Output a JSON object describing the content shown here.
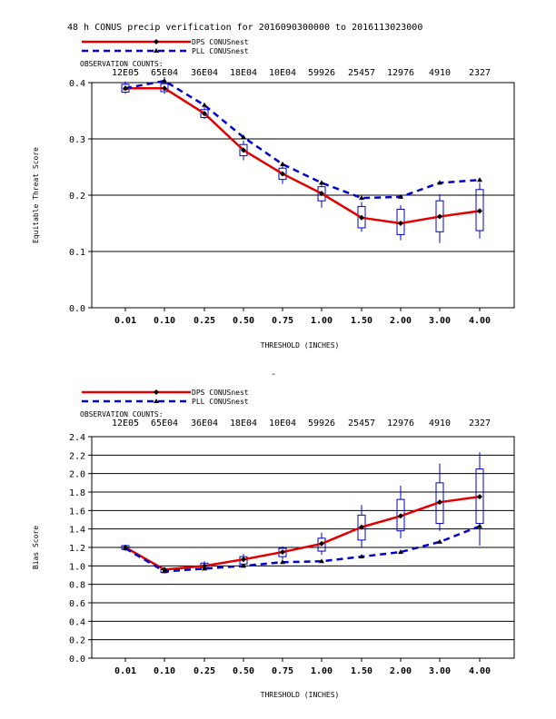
{
  "title": "48 h CONUS precip verification for 2016090300000 to 2016113023000",
  "legend": [
    {
      "name": "DPS CONUSnest",
      "color": "#e00000",
      "dash": false
    },
    {
      "name": "PLL CONUSnest",
      "color": "#0000cc",
      "dash": true
    }
  ],
  "obs_counts_label": "OBSERVATION COUNTS:",
  "obs_counts": [
    "12E05",
    "65E04",
    "36E04",
    "18E04",
    "10E04",
    "59926",
    "25457",
    "12976",
    "4910",
    "2327"
  ],
  "separator": "-",
  "chart_data": [
    {
      "type": "line",
      "title": "",
      "xlabel": "THRESHOLD (INCHES)",
      "ylabel": "Equitable Threat Score",
      "categories": [
        "0.01",
        "0.10",
        "0.25",
        "0.50",
        "0.75",
        "1.00",
        "1.50",
        "2.00",
        "3.00",
        "4.00"
      ],
      "ylim": [
        0,
        0.4
      ],
      "yticks": [
        "0.0",
        "0.1",
        "0.2",
        "0.3",
        "0.4"
      ],
      "series": [
        {
          "name": "DPS CONUSnest",
          "color": "#e00000",
          "values": [
            0.39,
            0.39,
            0.345,
            0.28,
            0.238,
            0.203,
            0.16,
            0.15,
            0.162,
            0.172
          ]
        },
        {
          "name": "PLL CONUSnest",
          "color": "#0000cc",
          "values": [
            0.39,
            0.403,
            0.36,
            0.303,
            0.255,
            0.222,
            0.195,
            0.197,
            0.222,
            0.227
          ]
        }
      ],
      "boxes": [
        {
          "q1": 0.383,
          "q3": 0.397,
          "min": 0.38,
          "max": 0.402
        },
        {
          "q1": 0.384,
          "q3": 0.398,
          "min": 0.38,
          "max": 0.41
        },
        {
          "q1": 0.338,
          "q3": 0.352,
          "min": 0.335,
          "max": 0.356
        },
        {
          "q1": 0.27,
          "q3": 0.29,
          "min": 0.262,
          "max": 0.297
        },
        {
          "q1": 0.228,
          "q3": 0.248,
          "min": 0.22,
          "max": 0.255
        },
        {
          "q1": 0.19,
          "q3": 0.215,
          "min": 0.178,
          "max": 0.222
        },
        {
          "q1": 0.142,
          "q3": 0.18,
          "min": 0.135,
          "max": 0.188
        },
        {
          "q1": 0.13,
          "q3": 0.175,
          "min": 0.12,
          "max": 0.182
        },
        {
          "q1": 0.135,
          "q3": 0.19,
          "min": 0.115,
          "max": 0.202
        },
        {
          "q1": 0.137,
          "q3": 0.21,
          "min": 0.123,
          "max": 0.222
        }
      ],
      "grid": true
    },
    {
      "type": "line",
      "title": "",
      "xlabel": "THRESHOLD (INCHES)",
      "ylabel": "Bias Score",
      "categories": [
        "0.01",
        "0.10",
        "0.25",
        "0.50",
        "0.75",
        "1.00",
        "1.50",
        "2.00",
        "3.00",
        "4.00"
      ],
      "ylim": [
        0,
        2.4
      ],
      "yticks": [
        "0.0",
        "0.2",
        "0.4",
        "0.6",
        "0.8",
        "1.0",
        "1.2",
        "1.4",
        "1.6",
        "1.8",
        "2.0",
        "2.2",
        "2.4"
      ],
      "series": [
        {
          "name": "DPS CONUSnest",
          "color": "#e00000",
          "values": [
            1.2,
            0.96,
            1.0,
            1.07,
            1.15,
            1.24,
            1.42,
            1.54,
            1.69,
            1.75
          ]
        },
        {
          "name": "PLL CONUSnest",
          "color": "#0000cc",
          "values": [
            1.19,
            0.94,
            0.97,
            1.0,
            1.04,
            1.05,
            1.1,
            1.15,
            1.26,
            1.43
          ]
        }
      ],
      "boxes": [
        {
          "q1": 1.18,
          "q3": 1.22,
          "min": 1.16,
          "max": 1.23
        },
        {
          "q1": 0.93,
          "q3": 0.96,
          "min": 0.92,
          "max": 0.97
        },
        {
          "q1": 0.98,
          "q3": 1.03,
          "min": 0.96,
          "max": 1.05
        },
        {
          "q1": 1.02,
          "q3": 1.1,
          "min": 0.99,
          "max": 1.13
        },
        {
          "q1": 1.1,
          "q3": 1.19,
          "min": 1.07,
          "max": 1.21
        },
        {
          "q1": 1.16,
          "q3": 1.3,
          "min": 1.12,
          "max": 1.36
        },
        {
          "q1": 1.28,
          "q3": 1.55,
          "min": 1.2,
          "max": 1.66
        },
        {
          "q1": 1.38,
          "q3": 1.72,
          "min": 1.3,
          "max": 1.87
        },
        {
          "q1": 1.46,
          "q3": 1.9,
          "min": 1.38,
          "max": 2.11
        },
        {
          "q1": 1.46,
          "q3": 2.05,
          "min": 1.22,
          "max": 2.23
        }
      ],
      "grid": true
    }
  ]
}
